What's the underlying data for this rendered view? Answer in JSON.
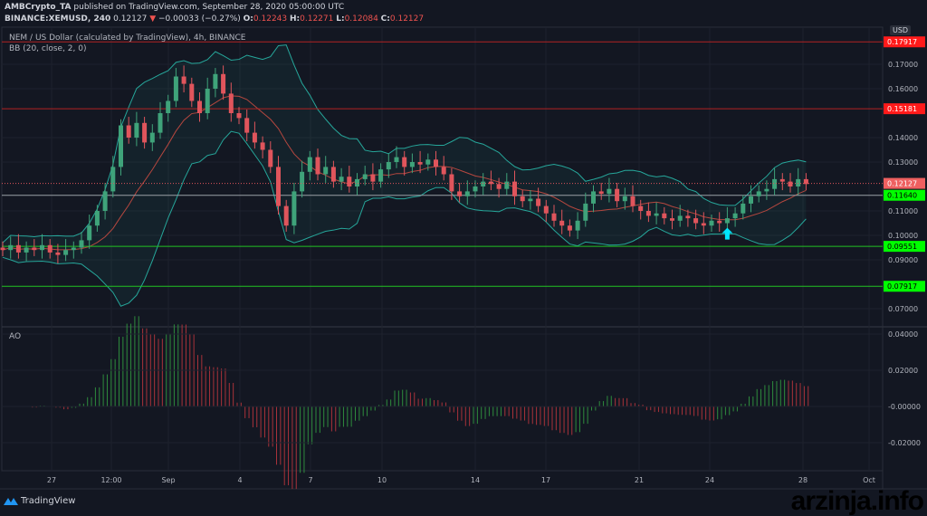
{
  "header": {
    "author": "AMBCrypto_TA",
    "published": "published on TradingView.com, September 28, 2020 05:00:00 UTC",
    "symbol": "BINANCE:XEMUSD, 240",
    "last": "0.12127",
    "change": "−0.00033 (−0.27%)",
    "o_label": "O:",
    "o": "0.12243",
    "h_label": "H:",
    "h": "0.12271",
    "l_label": "L:",
    "l": "0.12084",
    "c_label": "C:",
    "c": "0.12127"
  },
  "legend": {
    "main": "NEM / US Dollar (calculated by TradingView), 4h, BINANCE",
    "bb": "BB (20, close, 2, 0)",
    "ao": "AO"
  },
  "currency": "USD",
  "footer": {
    "brand": "TradingView",
    "watermark": "arzinja.info"
  },
  "colors": {
    "up": "#3fa37a",
    "down": "#e0555c",
    "bb": "#26a69a",
    "basis": "#b5473f",
    "arrow": "#00e5ff",
    "res": "#ff1a1a",
    "sup": "#00ff00"
  },
  "chart_data": [
    {
      "type": "candlestick",
      "ylim": [
        0.065,
        0.18
      ],
      "y_ticks": [
        "0.17000",
        "0.16000",
        "0.14000",
        "0.13000",
        "0.11000",
        "0.10000",
        "0.09000",
        "0.07000"
      ],
      "x_ticks": [
        "27",
        "12:00",
        "Sep",
        "4",
        "7",
        "10",
        "14",
        "17",
        "21",
        "24",
        "28",
        "Oct"
      ],
      "closes": [
        0.094,
        0.096,
        0.093,
        0.095,
        0.094,
        0.096,
        0.093,
        0.092,
        0.094,
        0.095,
        0.098,
        0.104,
        0.11,
        0.118,
        0.128,
        0.145,
        0.14,
        0.146,
        0.138,
        0.142,
        0.15,
        0.155,
        0.165,
        0.162,
        0.155,
        0.15,
        0.16,
        0.166,
        0.158,
        0.15,
        0.148,
        0.142,
        0.138,
        0.135,
        0.128,
        0.112,
        0.104,
        0.118,
        0.126,
        0.132,
        0.125,
        0.128,
        0.122,
        0.124,
        0.12,
        0.123,
        0.125,
        0.122,
        0.127,
        0.13,
        0.132,
        0.128,
        0.13,
        0.129,
        0.131,
        0.128,
        0.125,
        0.118,
        0.116,
        0.118,
        0.12,
        0.122,
        0.121,
        0.119,
        0.122,
        0.116,
        0.114,
        0.115,
        0.112,
        0.109,
        0.106,
        0.104,
        0.102,
        0.106,
        0.113,
        0.118,
        0.117,
        0.119,
        0.114,
        0.116,
        0.112,
        0.11,
        0.108,
        0.109,
        0.107,
        0.106,
        0.108,
        0.107,
        0.105,
        0.104,
        0.106,
        0.105,
        0.107,
        0.109,
        0.113,
        0.116,
        0.118,
        0.119,
        0.123,
        0.122,
        0.12,
        0.123,
        0.121
      ],
      "levels": [
        {
          "label": "0.17917",
          "value": 0.17917,
          "kind": "res"
        },
        {
          "label": "0.15181",
          "value": 0.15181,
          "kind": "res"
        },
        {
          "label": "0.11640",
          "value": 0.1164,
          "kind": "sup"
        },
        {
          "label": "0.09551",
          "value": 0.09551,
          "kind": "sup"
        },
        {
          "label": "0.07917",
          "value": 0.07917,
          "kind": "sup"
        }
      ],
      "last_price": {
        "label": "0.12127",
        "value": 0.12127
      },
      "signal": {
        "type": "up-arrow",
        "price": 0.1005,
        "index": 92
      }
    },
    {
      "type": "bar",
      "name": "AO",
      "ylim": [
        -0.027,
        0.042
      ],
      "y_ticks": [
        {
          "label": "0.04000",
          "v": 0.04
        },
        {
          "label": "0.02000",
          "v": 0.02
        },
        {
          "label": "-0.00000",
          "v": 0
        },
        {
          "label": "-0.02000",
          "v": -0.02
        }
      ]
    }
  ]
}
